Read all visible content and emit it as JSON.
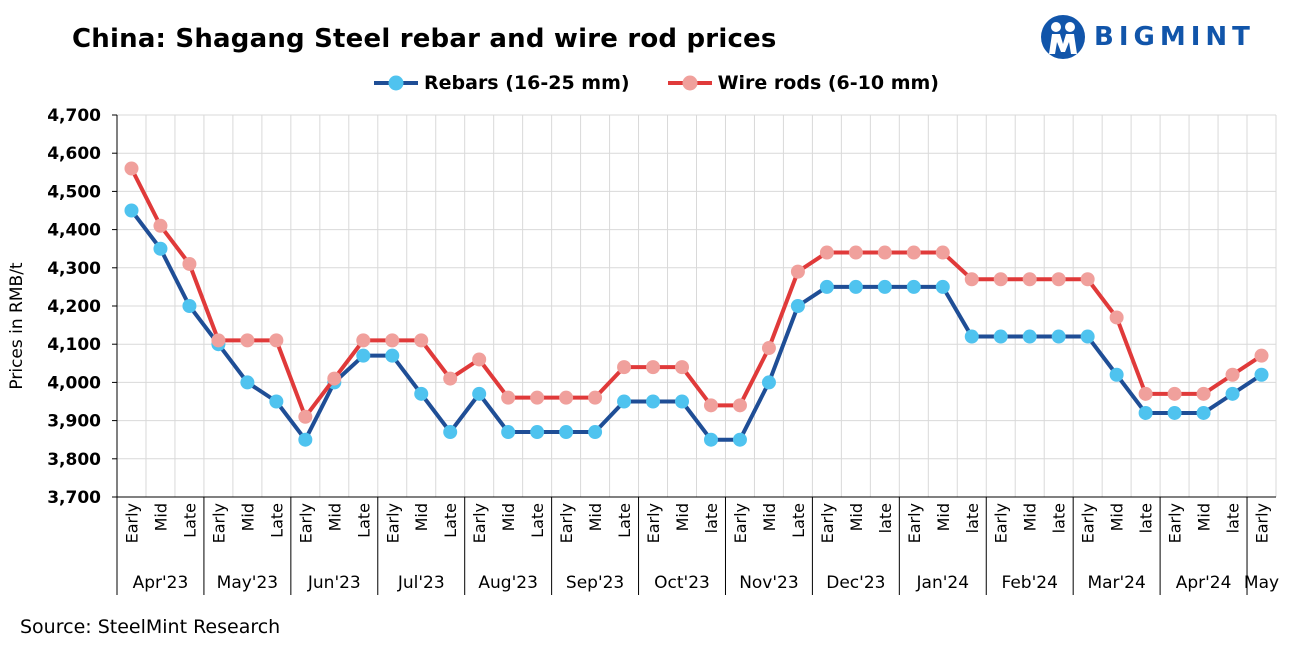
{
  "brand": {
    "name": "BIGMINT",
    "primary": "#1155aa"
  },
  "source": "Source: SteelMint Research",
  "chart_data": {
    "type": "line",
    "title": "China: Shagang Steel rebar and wire rod prices",
    "xlabel": "",
    "ylabel": "Prices in RMB/t",
    "ylim": [
      3700,
      4700
    ],
    "yticks": [
      3700,
      3800,
      3900,
      4000,
      4100,
      4200,
      4300,
      4400,
      4500,
      4600,
      4700
    ],
    "ytick_labels": [
      "3,700",
      "3,800",
      "3,900",
      "4,000",
      "4,100",
      "4,200",
      "4,300",
      "4,400",
      "4,500",
      "4,600",
      "4,700"
    ],
    "grid": true,
    "legend_position": "top-center",
    "categories": [
      "Early",
      "Mid",
      "Late",
      "Early",
      "Mid",
      "Late",
      "Early",
      "Mid",
      "Late",
      "Early",
      "Mid",
      "Late",
      "Early",
      "Mid",
      "Late",
      "Early",
      "Mid",
      "Late",
      "Early",
      "Mid",
      "late",
      "Early",
      "Mid",
      "Late",
      "Early",
      "Mid",
      "late",
      "Early",
      "Mid",
      "late",
      "Early",
      "Mid",
      "late",
      "Early",
      "Mid",
      "late",
      "Early",
      "Mid",
      "late",
      "Early"
    ],
    "month_groups": [
      {
        "label": "Apr'23",
        "count": 3
      },
      {
        "label": "May'23",
        "count": 3
      },
      {
        "label": "Jun'23",
        "count": 3
      },
      {
        "label": "Jul'23",
        "count": 3
      },
      {
        "label": "Aug'23",
        "count": 3
      },
      {
        "label": "Sep'23",
        "count": 3
      },
      {
        "label": "Oct'23",
        "count": 3
      },
      {
        "label": "Nov'23",
        "count": 3
      },
      {
        "label": "Dec'23",
        "count": 3
      },
      {
        "label": "Jan'24",
        "count": 3
      },
      {
        "label": "Feb'24",
        "count": 3
      },
      {
        "label": "Mar'24",
        "count": 3
      },
      {
        "label": "Apr'24",
        "count": 3
      },
      {
        "label": "May",
        "count": 1
      }
    ],
    "series": [
      {
        "name": "Rebars (16-25 mm)",
        "line_color": "#1f4e96",
        "marker_color": "#4fc3ef",
        "values": [
          4450,
          4350,
          4200,
          4100,
          4000,
          3950,
          3850,
          4000,
          4070,
          4070,
          3970,
          3870,
          3970,
          3870,
          3870,
          3870,
          3870,
          3950,
          3950,
          3950,
          3850,
          3850,
          4000,
          4200,
          4250,
          4250,
          4250,
          4250,
          4250,
          4120,
          4120,
          4120,
          4120,
          4120,
          4020,
          3920,
          3920,
          3920,
          3970,
          4020
        ]
      },
      {
        "name": "Wire rods (6-10 mm)",
        "line_color": "#e03a3a",
        "marker_color": "#f0a09c",
        "values": [
          4560,
          4410,
          4310,
          4110,
          4110,
          4110,
          3910,
          4010,
          4110,
          4110,
          4110,
          4010,
          4060,
          3960,
          3960,
          3960,
          3960,
          4040,
          4040,
          4040,
          3940,
          3940,
          4090,
          4290,
          4340,
          4340,
          4340,
          4340,
          4340,
          4270,
          4270,
          4270,
          4270,
          4270,
          4170,
          3970,
          3970,
          3970,
          4020,
          4070
        ]
      }
    ]
  }
}
